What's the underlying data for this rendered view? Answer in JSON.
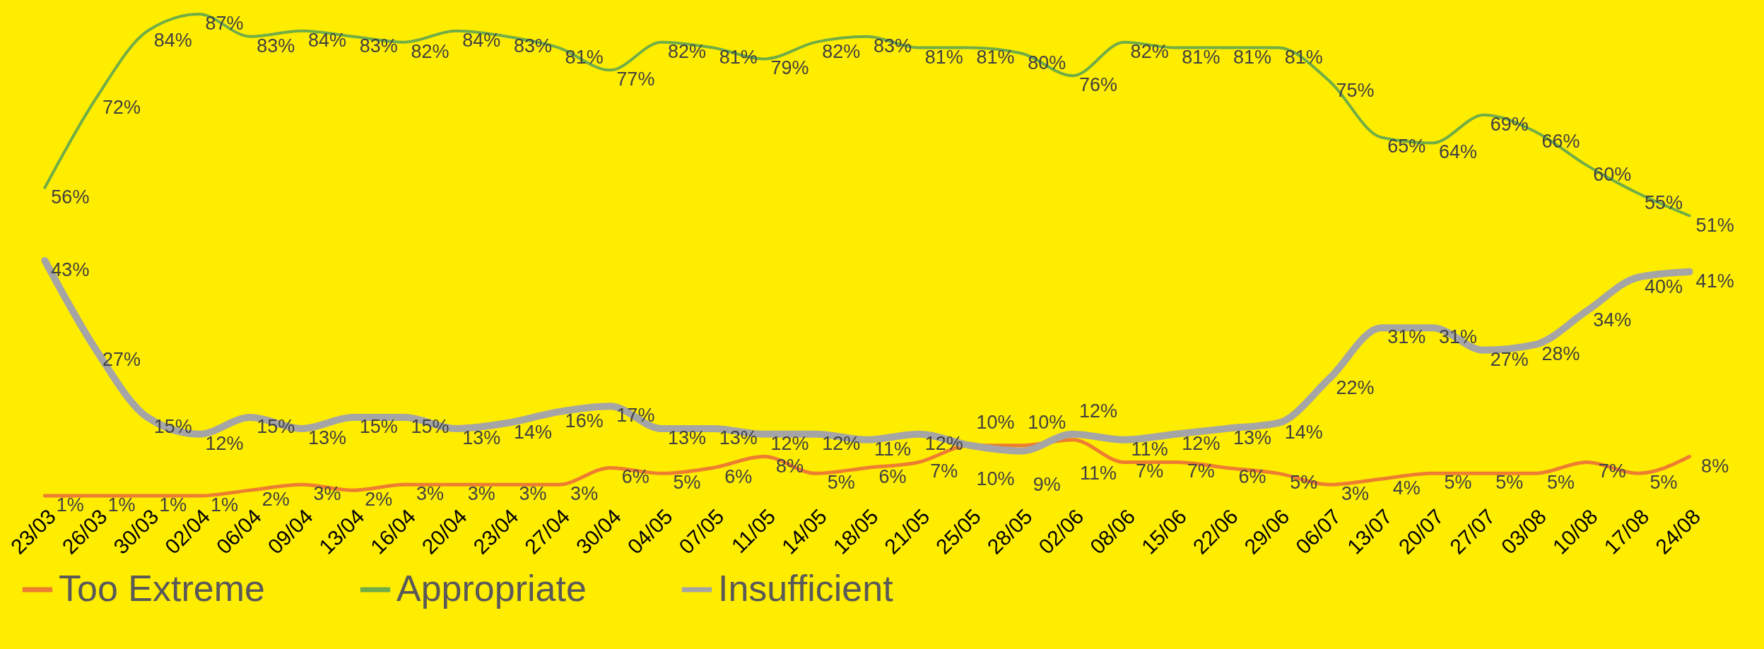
{
  "chart_data": {
    "type": "line",
    "categories": [
      "23/03",
      "26/03",
      "30/03",
      "02/04",
      "06/04",
      "09/04",
      "13/04",
      "16/04",
      "20/04",
      "23/04",
      "27/04",
      "30/04",
      "04/05",
      "07/05",
      "11/05",
      "14/05",
      "18/05",
      "21/05",
      "25/05",
      "28/05",
      "02/06",
      "08/06",
      "15/06",
      "22/06",
      "29/06",
      "06/07",
      "13/07",
      "20/07",
      "27/07",
      "03/08",
      "10/08",
      "17/08",
      "24/08"
    ],
    "series": [
      {
        "name": "Too Extreme",
        "color": "#ed7d31",
        "values": [
          1,
          1,
          1,
          1,
          2,
          3,
          2,
          3,
          3,
          3,
          3,
          6,
          5,
          6,
          8,
          5,
          6,
          7,
          10,
          10,
          11,
          7,
          7,
          6,
          5,
          3,
          4,
          5,
          5,
          5,
          7,
          5,
          8
        ],
        "value_labels": [
          "1%",
          "1%",
          "1%",
          "1%",
          "2%",
          "3%",
          "2%",
          "3%",
          "3%",
          "3%",
          "3%",
          "6%",
          "5%",
          "6%",
          "8%",
          "5%",
          "6%",
          "7%",
          "10%",
          "10%",
          "11%",
          "7%",
          "7%",
          "6%",
          "5%",
          "3%",
          "4%",
          "5%",
          "5%",
          "5%",
          "7%",
          "5%",
          "8%"
        ]
      },
      {
        "name": "Appropriate",
        "color": "#70ad47",
        "values": [
          56,
          72,
          84,
          87,
          83,
          84,
          83,
          82,
          84,
          83,
          81,
          77,
          82,
          81,
          79,
          82,
          83,
          81,
          81,
          80,
          76,
          82,
          81,
          81,
          81,
          75,
          65,
          64,
          69,
          66,
          60,
          55,
          51
        ],
        "value_labels": [
          "56%",
          "72%",
          "84%",
          "87%",
          "83%",
          "84%",
          "83%",
          "82%",
          "84%",
          "83%",
          "81%",
          "77%",
          "82%",
          "81%",
          "79%",
          "82%",
          "83%",
          "81%",
          "81%",
          "80%",
          "76%",
          "82%",
          "81%",
          "81%",
          "81%",
          "75%",
          "65%",
          "64%",
          "69%",
          "66%",
          "60%",
          "55%",
          "51%"
        ]
      },
      {
        "name": "Insufficient",
        "color": "#a5a5a5",
        "values": [
          43,
          27,
          15,
          12,
          15,
          13,
          15,
          15,
          13,
          14,
          16,
          17,
          13,
          13,
          12,
          12,
          11,
          12,
          10,
          9,
          12,
          11,
          12,
          13,
          14,
          22,
          31,
          31,
          27,
          28,
          34,
          40,
          41
        ],
        "value_labels": [
          "43%",
          "27%",
          "15%",
          "12%",
          "15%",
          "13%",
          "15%",
          "15%",
          "13%",
          "14%",
          "16%",
          "17%",
          "13%",
          "13%",
          "12%",
          "12%",
          "11%",
          "12%",
          "10%",
          "9%",
          "12%",
          "11%",
          "12%",
          "13%",
          "14%",
          "22%",
          "31%",
          "31%",
          "27%",
          "28%",
          "34%",
          "40%",
          "41%"
        ]
      }
    ],
    "legend": "bottom",
    "marker": "none",
    "line_style": "solid"
  }
}
